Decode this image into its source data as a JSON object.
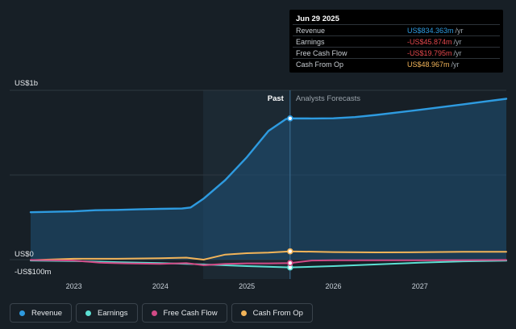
{
  "chart_data": {
    "type": "line",
    "y_top_label": "US$1b",
    "y_zero_label": "US$0",
    "y_bottom_label": "-US$100m",
    "ylim": [
      -100,
      1000
    ],
    "xlim": [
      2022.5,
      2028.0
    ],
    "x_ticks": [
      "2023",
      "2024",
      "2025",
      "2026",
      "2027"
    ],
    "past_label": "Past",
    "forecast_label": "Analysts Forecasts",
    "divider_x": 2025.5,
    "series": [
      {
        "name": "Revenue",
        "color": "#2e9be0",
        "points": [
          [
            2022.5,
            280
          ],
          [
            2023.0,
            285
          ],
          [
            2023.25,
            292
          ],
          [
            2023.5,
            294
          ],
          [
            2023.75,
            297
          ],
          [
            2024.0,
            300
          ],
          [
            2024.25,
            302
          ],
          [
            2024.35,
            308
          ],
          [
            2024.5,
            360
          ],
          [
            2024.75,
            470
          ],
          [
            2025.0,
            605
          ],
          [
            2025.25,
            760
          ],
          [
            2025.45,
            830
          ],
          [
            2025.5,
            834.363
          ],
          [
            2025.75,
            834
          ],
          [
            2026.0,
            835
          ],
          [
            2026.25,
            842
          ],
          [
            2026.5,
            855
          ],
          [
            2027.0,
            885
          ],
          [
            2027.5,
            917
          ],
          [
            2028.0,
            950
          ]
        ]
      },
      {
        "name": "Earnings",
        "color": "#5ce0d3",
        "points": [
          [
            2022.5,
            -5
          ],
          [
            2023.0,
            -8
          ],
          [
            2023.5,
            -15
          ],
          [
            2024.0,
            -20
          ],
          [
            2024.5,
            -28
          ],
          [
            2025.0,
            -38
          ],
          [
            2025.5,
            -45.874
          ],
          [
            2026.0,
            -38
          ],
          [
            2026.5,
            -28
          ],
          [
            2027.0,
            -18
          ],
          [
            2027.5,
            -10
          ],
          [
            2028.0,
            -6
          ]
        ]
      },
      {
        "name": "Free Cash Flow",
        "color": "#d24a86",
        "points": [
          [
            2022.5,
            -2
          ],
          [
            2023.0,
            -5
          ],
          [
            2023.3,
            -18
          ],
          [
            2023.6,
            -22
          ],
          [
            2024.0,
            -25
          ],
          [
            2024.3,
            -20
          ],
          [
            2024.5,
            -33
          ],
          [
            2024.75,
            -25
          ],
          [
            2025.0,
            -22
          ],
          [
            2025.25,
            -22
          ],
          [
            2025.5,
            -19.795
          ],
          [
            2025.75,
            -5
          ],
          [
            2026.0,
            -4
          ],
          [
            2026.5,
            -4
          ],
          [
            2027.0,
            -4
          ],
          [
            2027.5,
            -3
          ],
          [
            2028.0,
            -2
          ]
        ]
      },
      {
        "name": "Cash From Op",
        "color": "#f2b459",
        "points": [
          [
            2022.5,
            -3
          ],
          [
            2023.0,
            5
          ],
          [
            2023.5,
            5
          ],
          [
            2024.0,
            8
          ],
          [
            2024.3,
            12
          ],
          [
            2024.5,
            0
          ],
          [
            2024.75,
            30
          ],
          [
            2025.0,
            38
          ],
          [
            2025.25,
            42
          ],
          [
            2025.5,
            48.967
          ],
          [
            2026.0,
            45
          ],
          [
            2026.5,
            43
          ],
          [
            2027.0,
            44
          ],
          [
            2027.5,
            46
          ],
          [
            2028.0,
            46
          ]
        ]
      }
    ]
  },
  "tooltip": {
    "date": "Jun 29 2025",
    "rows": [
      {
        "label": "Revenue",
        "value": "US$834.363m",
        "unit": "/yr",
        "color": "#2e9be0"
      },
      {
        "label": "Earnings",
        "value": "-US$45.874m",
        "unit": "/yr",
        "color": "#e5484d"
      },
      {
        "label": "Free Cash Flow",
        "value": "-US$19.795m",
        "unit": "/yr",
        "color": "#e5484d"
      },
      {
        "label": "Cash From Op",
        "value": "US$48.967m",
        "unit": "/yr",
        "color": "#f2b459"
      }
    ]
  },
  "legend": [
    {
      "label": "Revenue",
      "color": "#2e9be0"
    },
    {
      "label": "Earnings",
      "color": "#5ce0d3"
    },
    {
      "label": "Free Cash Flow",
      "color": "#d24a86"
    },
    {
      "label": "Cash From Op",
      "color": "#f2b459"
    }
  ]
}
